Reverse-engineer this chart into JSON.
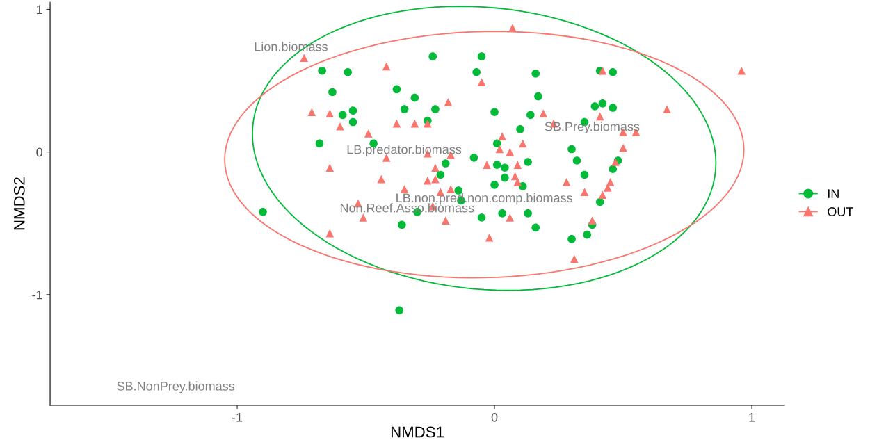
{
  "chart_data": {
    "type": "scatter",
    "xlabel": "NMDS1",
    "ylabel": "NMDS2",
    "xlim": [
      -1.727,
      1.127
    ],
    "ylim": [
      -1.776,
      1.05
    ],
    "xticks": [
      -1,
      0,
      1
    ],
    "yticks": [
      -1,
      0,
      1
    ],
    "grid": false,
    "legend": "right",
    "series": [
      {
        "name": "IN",
        "color": "#00ba38",
        "marker": "circle",
        "x": [
          -0.9,
          -0.67,
          -0.57,
          -0.63,
          -0.59,
          -0.55,
          -0.55,
          -0.68,
          -0.47,
          -0.38,
          -0.31,
          -0.35,
          -0.23,
          -0.26,
          -0.24,
          -0.05,
          -0.07,
          0.0,
          0.01,
          -0.08,
          -0.19,
          -0.21,
          0.01,
          -0.36,
          -0.3,
          -0.14,
          -0.13,
          -0.05,
          0.0,
          0.16,
          0.41,
          0.46,
          0.17,
          0.14,
          0.39,
          0.42,
          0.46,
          0.35,
          0.1,
          0.3,
          0.32,
          0.48,
          0.46,
          0.35,
          0.04,
          0.13,
          0.04,
          0.11,
          0.41,
          0.03,
          0.13,
          0.16,
          0.3,
          0.36,
          0.38,
          -0.37
        ],
        "values": [
          -0.42,
          0.57,
          0.56,
          0.42,
          0.26,
          0.29,
          0.21,
          0.06,
          0.06,
          0.44,
          0.38,
          0.3,
          0.3,
          0.22,
          0.67,
          0.67,
          0.56,
          0.28,
          0.06,
          -0.04,
          -0.08,
          -0.16,
          -0.09,
          -0.51,
          -0.42,
          -0.27,
          -0.34,
          -0.46,
          -0.23,
          0.55,
          0.57,
          0.56,
          0.39,
          0.26,
          0.32,
          0.34,
          0.31,
          0.21,
          0.16,
          0.02,
          -0.06,
          -0.06,
          -0.12,
          -0.16,
          -0.11,
          -0.07,
          -0.18,
          -0.24,
          -0.35,
          -0.43,
          -0.43,
          -0.53,
          -0.61,
          -0.58,
          -0.51,
          -1.11
        ]
      },
      {
        "name": "OUT",
        "color": "#f8766d",
        "marker": "triangle",
        "x": [
          -0.74,
          -0.42,
          -0.05,
          -0.71,
          -0.64,
          -0.6,
          -0.49,
          -0.38,
          -0.31,
          -0.26,
          -0.18,
          -0.26,
          -0.17,
          -0.42,
          -0.64,
          -0.23,
          -0.44,
          -0.35,
          -0.26,
          -0.23,
          -0.21,
          -0.17,
          -0.24,
          -0.19,
          -0.53,
          -0.51,
          -0.64,
          -0.02,
          -0.03,
          0.42,
          0.96,
          0.19,
          0.23,
          0.41,
          0.67,
          0.5,
          0.55,
          0.5,
          0.03,
          0.11,
          0.02,
          0.06,
          0.09,
          0.47,
          0.08,
          0.09,
          0.28,
          0.35,
          0.45,
          0.44,
          0.42,
          0.06,
          0.38,
          0.31,
          0.07
        ],
        "values": [
          0.66,
          0.6,
          0.49,
          0.28,
          0.27,
          0.18,
          0.13,
          0.2,
          0.2,
          0.2,
          0.35,
          -0.01,
          -0.02,
          -0.04,
          -0.11,
          -0.11,
          -0.19,
          -0.26,
          -0.2,
          -0.19,
          -0.28,
          -0.26,
          -0.38,
          -0.48,
          -0.36,
          -0.46,
          -0.57,
          -0.6,
          -0.09,
          0.57,
          0.57,
          0.27,
          0.2,
          0.25,
          0.3,
          0.14,
          0.14,
          0.03,
          0.11,
          0.06,
          0.02,
          0.0,
          -0.09,
          -0.07,
          -0.17,
          -0.21,
          -0.21,
          -0.28,
          -0.21,
          -0.25,
          -0.3,
          -0.46,
          -0.48,
          -0.75,
          0.87
        ]
      }
    ],
    "annotations": [
      "Lion.biomass",
      "LB.predator.biomass",
      "SB.Prey.biomass",
      "LB.non.pred.non.comp.biomass",
      "Non.Reef.Asso.biomass",
      "SB.NonPrey.biomass"
    ]
  }
}
